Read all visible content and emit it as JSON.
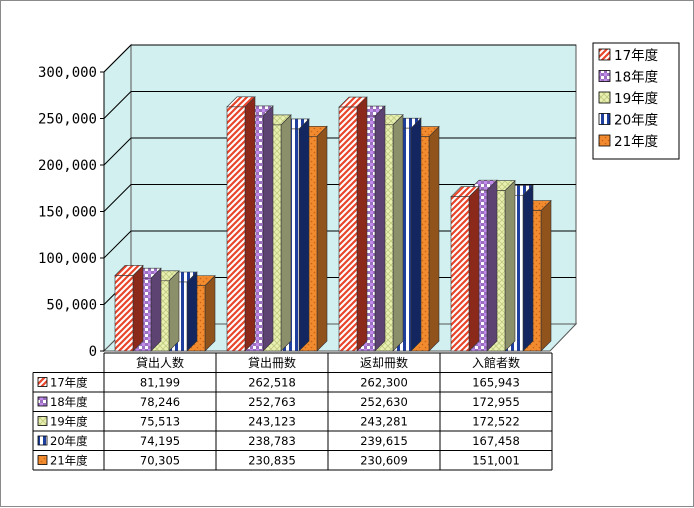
{
  "chart_data": {
    "type": "bar",
    "categories": [
      "貸出人数",
      "貸出冊数",
      "返却冊数",
      "入館者数"
    ],
    "series": [
      {
        "name": "17年度",
        "values": [
          81199,
          262518,
          262300,
          165943
        ],
        "color": "#e8452b",
        "pattern": "diag"
      },
      {
        "name": "18年度",
        "values": [
          78246,
          252763,
          252630,
          172955
        ],
        "color": "#9a6fbd",
        "pattern": "check"
      },
      {
        "name": "19年度",
        "values": [
          75513,
          243123,
          243281,
          172522
        ],
        "color": "#e8efb0",
        "pattern": "weave"
      },
      {
        "name": "20年度",
        "values": [
          74195,
          238783,
          239615,
          167458
        ],
        "color": "#1f3f9f",
        "pattern": "vstripe"
      },
      {
        "name": "21年度",
        "values": [
          70305,
          230835,
          230609,
          151001
        ],
        "color": "#f28a2e",
        "pattern": "dots"
      }
    ],
    "display_values": [
      [
        "81,199",
        "262,518",
        "262,300",
        "165,943"
      ],
      [
        "78,246",
        "252,763",
        "252,630",
        "172,955"
      ],
      [
        "75,513",
        "243,123",
        "243,281",
        "172,522"
      ],
      [
        "74,195",
        "238,783",
        "239,615",
        "167,458"
      ],
      [
        "70,305",
        "230,835",
        "230,609",
        "151,001"
      ]
    ],
    "y_ticks": [
      "0",
      "50,000",
      "100,000",
      "150,000",
      "200,000",
      "250,000",
      "300,000"
    ],
    "ylim": [
      0,
      300000
    ],
    "grid": true,
    "legend": "right",
    "wall_color": "#d2f0f0",
    "title": "",
    "xlabel": "",
    "ylabel": ""
  }
}
